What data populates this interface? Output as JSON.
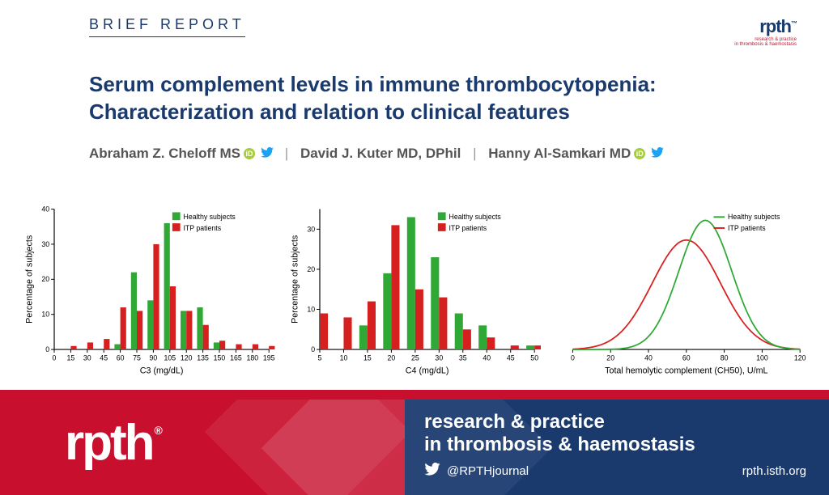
{
  "header": {
    "section_label": "BRIEF REPORT",
    "logo_text": "rpth",
    "logo_tm": "™",
    "logo_sub1": "research & practice",
    "logo_sub2": "in thrombosis & haemostasis"
  },
  "title_line1": "Serum complement levels in immune thrombocytopenia:",
  "title_line2": "Characterization and relation to clinical features",
  "authors": {
    "a1": "Abraham Z. Cheloff MS",
    "a2": "David J. Kuter MD, DPhil",
    "a3": "Hanny Al-Samkari MD"
  },
  "colors": {
    "healthy": "#2fa836",
    "itp": "#d6201f",
    "axis": "#000000",
    "title_blue": "#1a3a6e",
    "brand_red": "#c8102e"
  },
  "chart1": {
    "type": "bar",
    "x_label": "C3 (mg/dL)",
    "y_label": "Percentage of subjects",
    "x_ticks": [
      0,
      15,
      30,
      45,
      60,
      75,
      90,
      105,
      120,
      135,
      150,
      165,
      180,
      195
    ],
    "y_ticks": [
      0,
      10,
      20,
      30,
      40
    ],
    "ylim": [
      0,
      40
    ],
    "legend": [
      "Healthy subjects",
      "ITP patients"
    ],
    "healthy_values": {
      "60": 1.5,
      "75": 22,
      "90": 14,
      "105": 36,
      "120": 11,
      "135": 12,
      "150": 2
    },
    "itp_values": {
      "15": 1,
      "30": 2,
      "45": 3,
      "60": 12,
      "75": 11,
      "90": 30,
      "105": 18,
      "120": 11,
      "135": 7,
      "150": 2.5,
      "165": 1.5,
      "180": 1.5,
      "195": 1
    }
  },
  "chart2": {
    "type": "bar",
    "x_label": "C4 (mg/dL)",
    "y_label": "Percentage of subjects",
    "x_ticks": [
      5,
      10,
      15,
      20,
      25,
      30,
      35,
      40,
      45,
      50
    ],
    "y_ticks": [
      0,
      10,
      20,
      30
    ],
    "ylim": [
      0,
      35
    ],
    "legend": [
      "Healthy subjects",
      "ITP patients"
    ],
    "healthy_values": {
      "15": 6,
      "20": 19,
      "25": 33,
      "30": 23,
      "35": 9,
      "40": 6,
      "50": 1
    },
    "itp_values": {
      "5": 9,
      "10": 8,
      "15": 12,
      "20": 31,
      "25": 15,
      "30": 13,
      "35": 5,
      "40": 3,
      "45": 1,
      "50": 1
    }
  },
  "chart3": {
    "type": "line",
    "x_label": "Total hemolytic complement (CH50), U/mL",
    "x_ticks": [
      0,
      20,
      40,
      60,
      80,
      100,
      120
    ],
    "ylim": [
      0,
      1
    ],
    "legend": [
      "Healthy subjects",
      "ITP patients"
    ],
    "healthy_curve": {
      "mean": 70,
      "sd": 14,
      "peak": 0.92,
      "color": "#2fa836"
    },
    "itp_curve": {
      "mean": 60,
      "sd": 18,
      "peak": 0.78,
      "color": "#d6201f"
    }
  },
  "footer": {
    "logo": "rpth",
    "reg": "®",
    "tag1": "research & practice",
    "tag2": "in thrombosis & haemostasis",
    "handle": "@RPTHjournal",
    "site": "rpth.isth.org"
  }
}
